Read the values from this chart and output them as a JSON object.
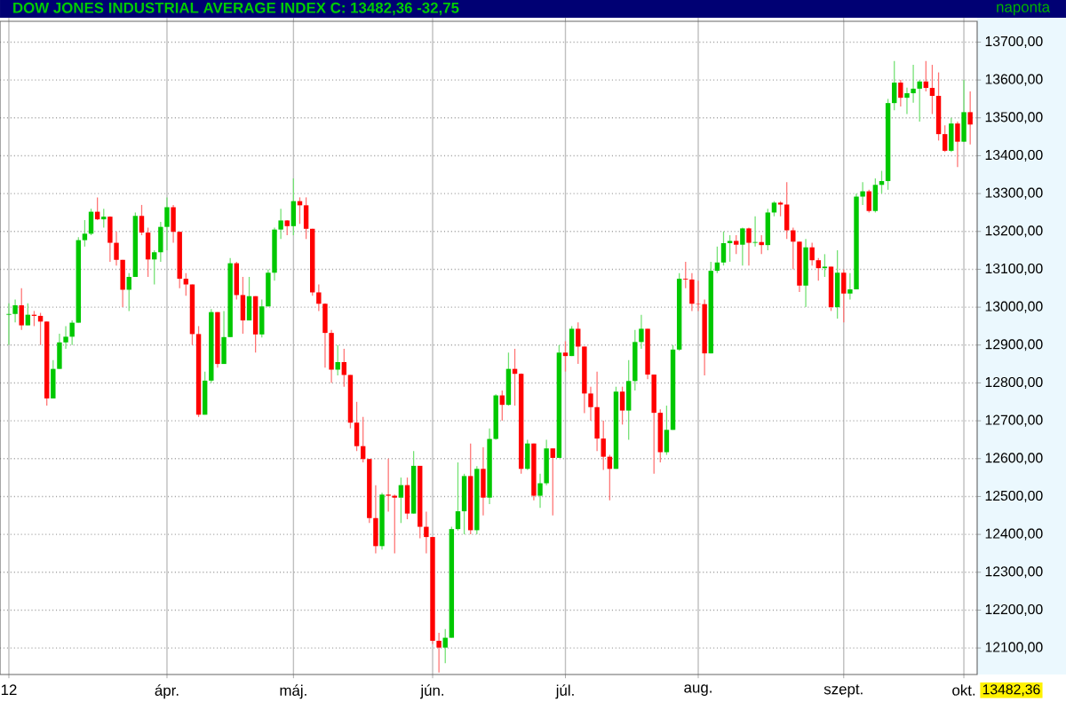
{
  "chart_data": {
    "type": "candlestick",
    "title": "DOW JONES INDUSTRIAL AVERAGE INDEX C: 13482,36 -32,75",
    "subtitle": "naponta",
    "categories": [
      "12",
      null,
      null,
      null,
      null,
      null,
      null,
      null,
      null,
      null,
      null,
      null,
      null,
      null,
      null,
      null,
      null,
      null,
      null,
      null,
      null,
      null,
      null,
      null,
      null,
      "ápr.",
      null,
      null,
      null,
      null,
      null,
      null,
      null,
      null,
      null,
      null,
      null,
      null,
      null,
      null,
      null,
      null,
      null,
      null,
      null,
      "máj.",
      null,
      null,
      null,
      null,
      null,
      null,
      null,
      null,
      null,
      null,
      null,
      null,
      null,
      null,
      null,
      null,
      null,
      null,
      null,
      null,
      null,
      "jún.",
      null,
      null,
      null,
      null,
      null,
      null,
      null,
      null,
      null,
      null,
      null,
      null,
      null,
      null,
      null,
      null,
      null,
      null,
      null,
      null,
      "júl.",
      null,
      null,
      null,
      null,
      null,
      null,
      null,
      null,
      null,
      null,
      null,
      null,
      null,
      null,
      null,
      null,
      null,
      null,
      null,
      null,
      "aug.",
      null,
      null,
      null,
      null,
      null,
      null,
      null,
      null,
      null,
      null,
      null,
      null,
      null,
      null,
      null,
      null,
      null,
      null,
      null,
      null,
      null,
      null,
      "szept.",
      null,
      null,
      null,
      null,
      null,
      null,
      null,
      null,
      null,
      null,
      null,
      null,
      null,
      null,
      null,
      null,
      null,
      null,
      "okt.",
      null
    ],
    "ohlc": [
      [
        12980,
        13010,
        12900,
        12982
      ],
      [
        12982,
        13020,
        12960,
        13005
      ],
      [
        13005,
        13050,
        12940,
        12952
      ],
      [
        12952,
        13010,
        12952,
        12980
      ],
      [
        12980,
        12990,
        12950,
        12977
      ],
      [
        12977,
        12985,
        12900,
        12962
      ],
      [
        12962,
        12962,
        12740,
        12759
      ],
      [
        12759,
        12860,
        12759,
        12837
      ],
      [
        12837,
        12930,
        12837,
        12907
      ],
      [
        12907,
        12950,
        12890,
        12922
      ],
      [
        12922,
        12965,
        12900,
        12959
      ],
      [
        12959,
        13185,
        12959,
        13177
      ],
      [
        13177,
        13230,
        13160,
        13194
      ],
      [
        13194,
        13260,
        13190,
        13252
      ],
      [
        13252,
        13290,
        13230,
        13232
      ],
      [
        13232,
        13260,
        13210,
        13239
      ],
      [
        13239,
        13240,
        13120,
        13170
      ],
      [
        13170,
        13200,
        13110,
        13125
      ],
      [
        13125,
        13125,
        13000,
        13046
      ],
      [
        13046,
        13090,
        12990,
        13080
      ],
      [
        13080,
        13250,
        13080,
        13241
      ],
      [
        13241,
        13270,
        13190,
        13197
      ],
      [
        13197,
        13210,
        13080,
        13126
      ],
      [
        13126,
        13150,
        13060,
        13145
      ],
      [
        13145,
        13225,
        13120,
        13212
      ],
      [
        13212,
        13290,
        13150,
        13264
      ],
      [
        13264,
        13270,
        13170,
        13199
      ],
      [
        13199,
        13199,
        13050,
        13075
      ],
      [
        13075,
        13090,
        13030,
        13060
      ],
      [
        13060,
        13060,
        12900,
        12929
      ],
      [
        12929,
        12950,
        12710,
        12716
      ],
      [
        12716,
        12830,
        12716,
        12806
      ],
      [
        12806,
        12995,
        12800,
        12987
      ],
      [
        12987,
        12987,
        12840,
        12850
      ],
      [
        12850,
        12990,
        12850,
        12921
      ],
      [
        12921,
        13130,
        12921,
        13116
      ],
      [
        13116,
        13120,
        13020,
        13032
      ],
      [
        13032,
        13080,
        12930,
        12965
      ],
      [
        12965,
        13080,
        12965,
        13029
      ],
      [
        13029,
        13029,
        12880,
        12928
      ],
      [
        12928,
        13020,
        12920,
        13002
      ],
      [
        13002,
        13100,
        13002,
        13091
      ],
      [
        13091,
        13210,
        13070,
        13205
      ],
      [
        13205,
        13260,
        13180,
        13229
      ],
      [
        13229,
        13230,
        13190,
        13214
      ],
      [
        13214,
        13340,
        13190,
        13280
      ],
      [
        13280,
        13290,
        13220,
        13269
      ],
      [
        13269,
        13290,
        13180,
        13207
      ],
      [
        13207,
        13207,
        13030,
        13039
      ],
      [
        13039,
        13060,
        12990,
        13009
      ],
      [
        13009,
        13010,
        12840,
        12932
      ],
      [
        12932,
        12940,
        12800,
        12835
      ],
      [
        12835,
        12900,
        12820,
        12855
      ],
      [
        12855,
        12890,
        12790,
        12821
      ],
      [
        12821,
        12821,
        12680,
        12695
      ],
      [
        12695,
        12750,
        12620,
        12633
      ],
      [
        12633,
        12710,
        12590,
        12599
      ],
      [
        12599,
        12599,
        12430,
        12443
      ],
      [
        12443,
        12530,
        12350,
        12369
      ],
      [
        12369,
        12510,
        12360,
        12505
      ],
      [
        12505,
        12600,
        12460,
        12502
      ],
      [
        12502,
        12505,
        12350,
        12497
      ],
      [
        12497,
        12550,
        12430,
        12530
      ],
      [
        12530,
        12550,
        12440,
        12455
      ],
      [
        12455,
        12620,
        12455,
        12581
      ],
      [
        12581,
        12581,
        12390,
        12420
      ],
      [
        12420,
        12460,
        12350,
        12393
      ],
      [
        12393,
        12393,
        12110,
        12119
      ],
      [
        12119,
        12140,
        12035,
        12101
      ],
      [
        12101,
        12150,
        12060,
        12127
      ],
      [
        12127,
        12420,
        12127,
        12414
      ],
      [
        12414,
        12590,
        12410,
        12461
      ],
      [
        12461,
        12560,
        12400,
        12554
      ],
      [
        12554,
        12640,
        12400,
        12411
      ],
      [
        12411,
        12580,
        12400,
        12573
      ],
      [
        12573,
        12630,
        12450,
        12497
      ],
      [
        12497,
        12680,
        12480,
        12652
      ],
      [
        12652,
        12770,
        12650,
        12767
      ],
      [
        12767,
        12780,
        12700,
        12742
      ],
      [
        12742,
        12880,
        12740,
        12837
      ],
      [
        12837,
        12890,
        12740,
        12824
      ],
      [
        12824,
        12825,
        12560,
        12573
      ],
      [
        12573,
        12650,
        12570,
        12640
      ],
      [
        12640,
        12640,
        12490,
        12502
      ],
      [
        12502,
        12560,
        12470,
        12535
      ],
      [
        12535,
        12650,
        12530,
        12627
      ],
      [
        12627,
        12627,
        12450,
        12602
      ],
      [
        12602,
        12900,
        12602,
        12880
      ],
      [
        12880,
        12910,
        12830,
        12871
      ],
      [
        12871,
        12950,
        12871,
        12943
      ],
      [
        12943,
        12960,
        12850,
        12896
      ],
      [
        12896,
        12896,
        12720,
        12772
      ],
      [
        12772,
        12790,
        12700,
        12736
      ],
      [
        12736,
        12830,
        12620,
        12653
      ],
      [
        12653,
        12700,
        12570,
        12605
      ],
      [
        12605,
        12610,
        12490,
        12573
      ],
      [
        12573,
        12790,
        12573,
        12777
      ],
      [
        12777,
        12790,
        12690,
        12727
      ],
      [
        12727,
        12860,
        12650,
        12805
      ],
      [
        12805,
        12940,
        12780,
        12908
      ],
      [
        12908,
        12980,
        12890,
        12943
      ],
      [
        12943,
        12943,
        12810,
        12822
      ],
      [
        12822,
        12822,
        12560,
        12721
      ],
      [
        12721,
        12730,
        12590,
        12617
      ],
      [
        12617,
        12740,
        12610,
        12676
      ],
      [
        12676,
        12900,
        12676,
        12888
      ],
      [
        12888,
        13090,
        12885,
        13075
      ],
      [
        13075,
        13120,
        13050,
        13073
      ],
      [
        13073,
        13090,
        12990,
        13009
      ],
      [
        13009,
        13070,
        12990,
        13008
      ],
      [
        13008,
        13020,
        12820,
        12878
      ],
      [
        12878,
        13120,
        12878,
        13096
      ],
      [
        13096,
        13160,
        13090,
        13118
      ],
      [
        13118,
        13200,
        13110,
        13169
      ],
      [
        13169,
        13190,
        13120,
        13175
      ],
      [
        13175,
        13190,
        13140,
        13165
      ],
      [
        13165,
        13210,
        13110,
        13208
      ],
      [
        13208,
        13210,
        13110,
        13170
      ],
      [
        13170,
        13240,
        13160,
        13172
      ],
      [
        13172,
        13190,
        13140,
        13164
      ],
      [
        13164,
        13260,
        13150,
        13250
      ],
      [
        13250,
        13280,
        13240,
        13276
      ],
      [
        13276,
        13280,
        13240,
        13271
      ],
      [
        13271,
        13330,
        13180,
        13203
      ],
      [
        13203,
        13210,
        13100,
        13173
      ],
      [
        13173,
        13173,
        13040,
        13057
      ],
      [
        13057,
        13180,
        13000,
        13158
      ],
      [
        13158,
        13170,
        13110,
        13124
      ],
      [
        13124,
        13130,
        13070,
        13103
      ],
      [
        13103,
        13140,
        13080,
        13107
      ],
      [
        13107,
        13107,
        12990,
        13000
      ],
      [
        13000,
        13150,
        12970,
        13091
      ],
      [
        13091,
        13100,
        12960,
        13036
      ],
      [
        13036,
        13090,
        13020,
        13047
      ],
      [
        13047,
        13300,
        13047,
        13292
      ],
      [
        13292,
        13330,
        13270,
        13306
      ],
      [
        13306,
        13310,
        13250,
        13254
      ],
      [
        13254,
        13340,
        13250,
        13323
      ],
      [
        13323,
        13360,
        13300,
        13333
      ],
      [
        13333,
        13550,
        13310,
        13539
      ],
      [
        13539,
        13650,
        13520,
        13593
      ],
      [
        13593,
        13600,
        13530,
        13553
      ],
      [
        13553,
        13580,
        13510,
        13565
      ],
      [
        13565,
        13640,
        13540,
        13577
      ],
      [
        13577,
        13600,
        13490,
        13596
      ],
      [
        13596,
        13650,
        13570,
        13579
      ],
      [
        13579,
        13640,
        13510,
        13558
      ],
      [
        13558,
        13620,
        13440,
        13457
      ],
      [
        13457,
        13480,
        13410,
        13413
      ],
      [
        13413,
        13500,
        13410,
        13485
      ],
      [
        13485,
        13490,
        13370,
        13437
      ],
      [
        13437,
        13600,
        13437,
        13515
      ],
      [
        13515,
        13570,
        13430,
        13482.36
      ]
    ],
    "colors": [
      "#00c800",
      "#00c800",
      "#ff0000",
      "#00c800",
      "#ff0000",
      "#ff0000",
      "#ff0000",
      "#00c800",
      "#00c800",
      "#00c800",
      "#00c800",
      "#00c800",
      "#00c800",
      "#00c800",
      "#ff0000",
      "#00c800",
      "#ff0000",
      "#ff0000",
      "#ff0000",
      "#00c800",
      "#00c800",
      "#ff0000",
      "#ff0000",
      "#00c800",
      "#00c800",
      "#00c800",
      "#ff0000",
      "#ff0000",
      "#ff0000",
      "#ff0000",
      "#ff0000",
      "#00c800",
      "#00c800",
      "#ff0000",
      "#00c800",
      "#00c800",
      "#ff0000",
      "#ff0000",
      "#00c800",
      "#ff0000",
      "#00c800",
      "#00c800",
      "#00c800",
      "#00c800",
      "#ff0000",
      "#00c800",
      "#ff0000",
      "#ff0000",
      "#ff0000",
      "#ff0000",
      "#ff0000",
      "#ff0000",
      "#00c800",
      "#ff0000",
      "#ff0000",
      "#ff0000",
      "#ff0000",
      "#ff0000",
      "#ff0000",
      "#00c800",
      "#ff0000",
      "#ff0000",
      "#00c800",
      "#ff0000",
      "#00c800",
      "#ff0000",
      "#ff0000",
      "#ff0000",
      "#ff0000",
      "#00c800",
      "#00c800",
      "#00c800",
      "#00c800",
      "#ff0000",
      "#00c800",
      "#ff0000",
      "#00c800",
      "#00c800",
      "#ff0000",
      "#00c800",
      "#ff0000",
      "#ff0000",
      "#00c800",
      "#ff0000",
      "#00c800",
      "#00c800",
      "#ff0000",
      "#00c800",
      "#ff0000",
      "#00c800",
      "#ff0000",
      "#ff0000",
      "#ff0000",
      "#ff0000",
      "#ff0000",
      "#ff0000",
      "#00c800",
      "#ff0000",
      "#00c800",
      "#00c800",
      "#00c800",
      "#ff0000",
      "#ff0000",
      "#ff0000",
      "#00c800",
      "#00c800",
      "#00c800",
      "#ff0000",
      "#ff0000",
      "#ff0000",
      "#ff0000",
      "#00c800",
      "#00c800",
      "#00c800",
      "#00c800",
      "#ff0000",
      "#00c800",
      "#ff0000",
      "#00c800",
      "#ff0000",
      "#00c800",
      "#00c800",
      "#ff0000",
      "#ff0000",
      "#ff0000",
      "#ff0000",
      "#00c800",
      "#ff0000",
      "#ff0000",
      "#00c800",
      "#ff0000",
      "#00c800",
      "#ff0000",
      "#00c800",
      "#00c800",
      "#00c800",
      "#ff0000",
      "#00c800",
      "#00c800",
      "#00c800",
      "#00c800",
      "#ff0000",
      "#00c800",
      "#00c800",
      "#00c800",
      "#ff0000",
      "#ff0000",
      "#ff0000",
      "#ff0000",
      "#00c800",
      "#ff0000",
      "#00c800",
      "#ff0000"
    ],
    "ylim": [
      12030,
      13755
    ],
    "yticks": [
      {
        "value": 12100,
        "label": "12100,00"
      },
      {
        "value": 12200,
        "label": "12200,00"
      },
      {
        "value": 12300,
        "label": "12300,00"
      },
      {
        "value": 12400,
        "label": "12400,00"
      },
      {
        "value": 12500,
        "label": "12500,00"
      },
      {
        "value": 12600,
        "label": "12600,00"
      },
      {
        "value": 12700,
        "label": "12700,00"
      },
      {
        "value": 12800,
        "label": "12800,00"
      },
      {
        "value": 12900,
        "label": "12900,00"
      },
      {
        "value": 13000,
        "label": "13000,00"
      },
      {
        "value": 13100,
        "label": "13100,00"
      },
      {
        "value": 13200,
        "label": "13200,00"
      },
      {
        "value": 13300,
        "label": "13300,00"
      },
      {
        "value": 13400,
        "label": "13400,00"
      },
      {
        "value": 13500,
        "label": "13500,00"
      },
      {
        "value": 13600,
        "label": "13600,00"
      },
      {
        "value": 13700,
        "label": "13700,00"
      }
    ],
    "grid": true,
    "annotations": [
      "13482,36"
    ]
  }
}
